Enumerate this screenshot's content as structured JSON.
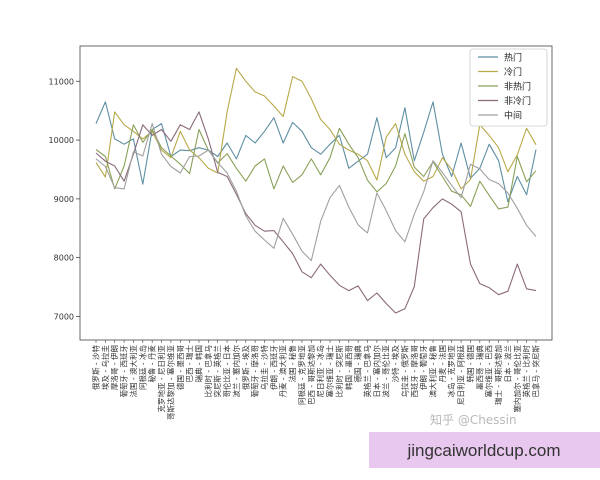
{
  "chart_data": {
    "type": "line",
    "ylim": [
      6600,
      11600
    ],
    "y_ticks": [
      "7000",
      "8000",
      "9000",
      "10000",
      "11000"
    ],
    "y_tick_values": [
      7000,
      8000,
      9000,
      10000,
      11000
    ],
    "legend_position": "top-right",
    "grid": false,
    "categories": [
      "俄罗斯 - 沙特",
      "埃及 - 乌拉圭",
      "摩洛哥 - 伊朗",
      "葡萄牙 - 西班牙",
      "法国 - 澳大利亚",
      "阿根廷 - 冰岛",
      "秘鲁 - 丹麦",
      "克罗地亚 - 尼日利亚",
      "哥斯达黎加 - 塞尔维亚",
      "德国 - 墨西哥",
      "巴西 - 瑞士",
      "瑞典 - 韩国",
      "比利时 - 巴拿马",
      "突尼斯 - 英格兰",
      "哥伦比亚 - 日本",
      "波兰 - 塞内加尔",
      "俄罗斯 - 埃及",
      "葡萄牙 - 摩洛哥",
      "乌拉圭 - 沙特",
      "伊朗 - 西班牙",
      "丹麦 - 澳大利亚",
      "法国 - 秘鲁",
      "阿根廷 - 克罗地亚",
      "巴西 - 哥斯达黎加",
      "尼日利亚 - 冰岛",
      "塞尔维亚 - 瑞士",
      "比利时 - 突尼斯",
      "韩国 - 墨西哥",
      "德国 - 瑞典",
      "英格兰 - 巴拿马",
      "日本 - 塞内加尔",
      "波兰 - 哥伦比亚",
      "沙特 - 埃及",
      "乌拉圭 - 俄罗斯",
      "西班牙 - 摩洛哥",
      "伊朗 - 葡萄牙",
      "澳大利亚 - 秘鲁",
      "丹麦 - 法国",
      "冰岛 - 克罗地亚",
      "尼日利亚 - 阿根廷",
      "韩国 - 德国",
      "墨西哥 - 瑞典",
      "塞尔维亚 - 巴西",
      "瑞士 - 哥斯达黎加",
      "日本 - 波兰",
      "塞内加尔 - 哥伦比亚",
      "英格兰 - 比利时",
      "巴拿马 - 突尼斯"
    ],
    "series": [
      {
        "name": "热门",
        "color": "#5e8fa3",
        "values": [
          10280,
          10650,
          10020,
          9930,
          10020,
          9250,
          10180,
          10280,
          9720,
          9830,
          9820,
          9870,
          9830,
          9720,
          9950,
          9680,
          10080,
          9950,
          10150,
          10380,
          9950,
          10300,
          10150,
          9870,
          9760,
          9930,
          10080,
          9520,
          9640,
          9760,
          10380,
          9700,
          9870,
          10550,
          9650,
          10130,
          10650,
          9760,
          9380,
          9950,
          9350,
          9520,
          9930,
          9650,
          8950,
          9380,
          9070,
          9840
        ]
      },
      {
        "name": "冷门",
        "color": "#b8a94a",
        "values": [
          9620,
          9370,
          10480,
          10260,
          10150,
          10020,
          10150,
          9830,
          9700,
          10150,
          9830,
          9700,
          9520,
          9440,
          10480,
          11220,
          11000,
          10820,
          10750,
          10580,
          10400,
          11080,
          11000,
          10700,
          10350,
          10180,
          9930,
          9830,
          9760,
          9650,
          9320,
          10050,
          10280,
          9760,
          9460,
          9300,
          9380,
          9700,
          9500,
          9170,
          9330,
          10260,
          10080,
          9870,
          9460,
          9750,
          10200,
          9920
        ]
      },
      {
        "name": "非热门",
        "color": "#8aa15a",
        "values": [
          9840,
          9720,
          9170,
          9560,
          10260,
          9960,
          10180,
          9870,
          9730,
          9590,
          9430,
          10180,
          9830,
          9610,
          9770,
          9520,
          9300,
          9560,
          9680,
          9170,
          9560,
          9280,
          9410,
          9680,
          9410,
          9700,
          10200,
          9930,
          9700,
          9320,
          9120,
          9260,
          9560,
          10110,
          9540,
          9380,
          9630,
          9380,
          9130,
          9070,
          8870,
          9300,
          9060,
          8830,
          8860,
          9720,
          9290,
          9480
        ]
      },
      {
        "name": "非冷门",
        "color": "#8a6a7c",
        "values": [
          9780,
          9640,
          9560,
          9300,
          9760,
          10260,
          10080,
          10180,
          9980,
          10260,
          10180,
          10480,
          10020,
          9450,
          9380,
          9080,
          8750,
          8550,
          8450,
          8460,
          8270,
          8070,
          7760,
          7660,
          7890,
          7700,
          7530,
          7440,
          7520,
          7270,
          7400,
          7220,
          7060,
          7130,
          7510,
          8660,
          8850,
          9000,
          8910,
          8780,
          7890,
          7560,
          7490,
          7370,
          7430,
          7890,
          7470,
          7440
        ]
      },
      {
        "name": "中间",
        "color": "#a0a0a0",
        "values": [
          9680,
          9550,
          9190,
          9170,
          9800,
          9730,
          10280,
          9760,
          9550,
          9440,
          9720,
          9730,
          9830,
          9620,
          9440,
          9130,
          8710,
          8450,
          8300,
          8160,
          8670,
          8400,
          8110,
          7950,
          8620,
          9020,
          9230,
          8860,
          8560,
          8420,
          9100,
          8800,
          8460,
          8270,
          8740,
          9120,
          9650,
          9450,
          9230,
          9020,
          9590,
          9510,
          9330,
          9260,
          9100,
          8840,
          8550,
          8360
        ]
      }
    ]
  },
  "watermark": "知乎 @Chessin",
  "banner": {
    "text": "jingcaiworldcup.com",
    "bg_color": "#e8c8ee"
  }
}
